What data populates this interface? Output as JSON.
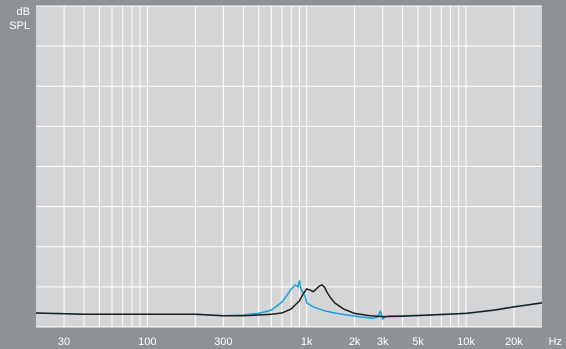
{
  "chart_data": {
    "type": "line",
    "ylabel": [
      "dB",
      "SPL"
    ],
    "xunit": "Hz",
    "xscale": "log",
    "xlim": [
      20,
      30000
    ],
    "ylim": [
      0,
      8
    ],
    "xticks": [
      {
        "value": 30,
        "label": "30"
      },
      {
        "value": 100,
        "label": "100"
      },
      {
        "value": 300,
        "label": "300"
      },
      {
        "value": 1000,
        "label": "1k"
      },
      {
        "value": 2000,
        "label": "2k"
      },
      {
        "value": 3000,
        "label": "3k"
      },
      {
        "value": 5000,
        "label": "5k"
      },
      {
        "value": 10000,
        "label": "10k"
      },
      {
        "value": 20000,
        "label": "20k"
      }
    ],
    "grid": true,
    "series": [
      {
        "color": "#1aa3d8",
        "x": [
          20,
          40,
          100,
          200,
          300,
          400,
          500,
          600,
          700,
          750,
          800,
          850,
          880,
          900,
          920,
          950,
          980,
          1000,
          1050,
          1100,
          1200,
          1300,
          1500,
          1800,
          2200,
          2600,
          2800,
          2900,
          3000,
          3100,
          3300,
          4000,
          6000,
          10000,
          15000,
          20000,
          30000
        ],
        "y": [
          0.35,
          0.32,
          0.32,
          0.32,
          0.28,
          0.3,
          0.34,
          0.42,
          0.62,
          0.78,
          0.95,
          1.05,
          1.0,
          1.15,
          0.95,
          0.85,
          0.75,
          0.6,
          0.55,
          0.5,
          0.45,
          0.4,
          0.35,
          0.3,
          0.25,
          0.22,
          0.25,
          0.4,
          0.2,
          0.25,
          0.28,
          0.28,
          0.3,
          0.34,
          0.42,
          0.5,
          0.6
        ]
      },
      {
        "color": "#1e1e1e",
        "x": [
          20,
          40,
          100,
          200,
          300,
          400,
          500,
          600,
          700,
          800,
          900,
          950,
          1000,
          1050,
          1100,
          1150,
          1200,
          1250,
          1300,
          1350,
          1400,
          1500,
          1700,
          2000,
          2500,
          3000,
          4000,
          6000,
          10000,
          15000,
          20000,
          30000
        ],
        "y": [
          0.35,
          0.32,
          0.32,
          0.32,
          0.28,
          0.28,
          0.3,
          0.32,
          0.35,
          0.45,
          0.65,
          0.82,
          0.95,
          0.92,
          0.88,
          0.95,
          1.02,
          1.05,
          0.98,
          0.85,
          0.75,
          0.6,
          0.45,
          0.34,
          0.28,
          0.26,
          0.27,
          0.3,
          0.34,
          0.42,
          0.5,
          0.6
        ]
      }
    ]
  }
}
